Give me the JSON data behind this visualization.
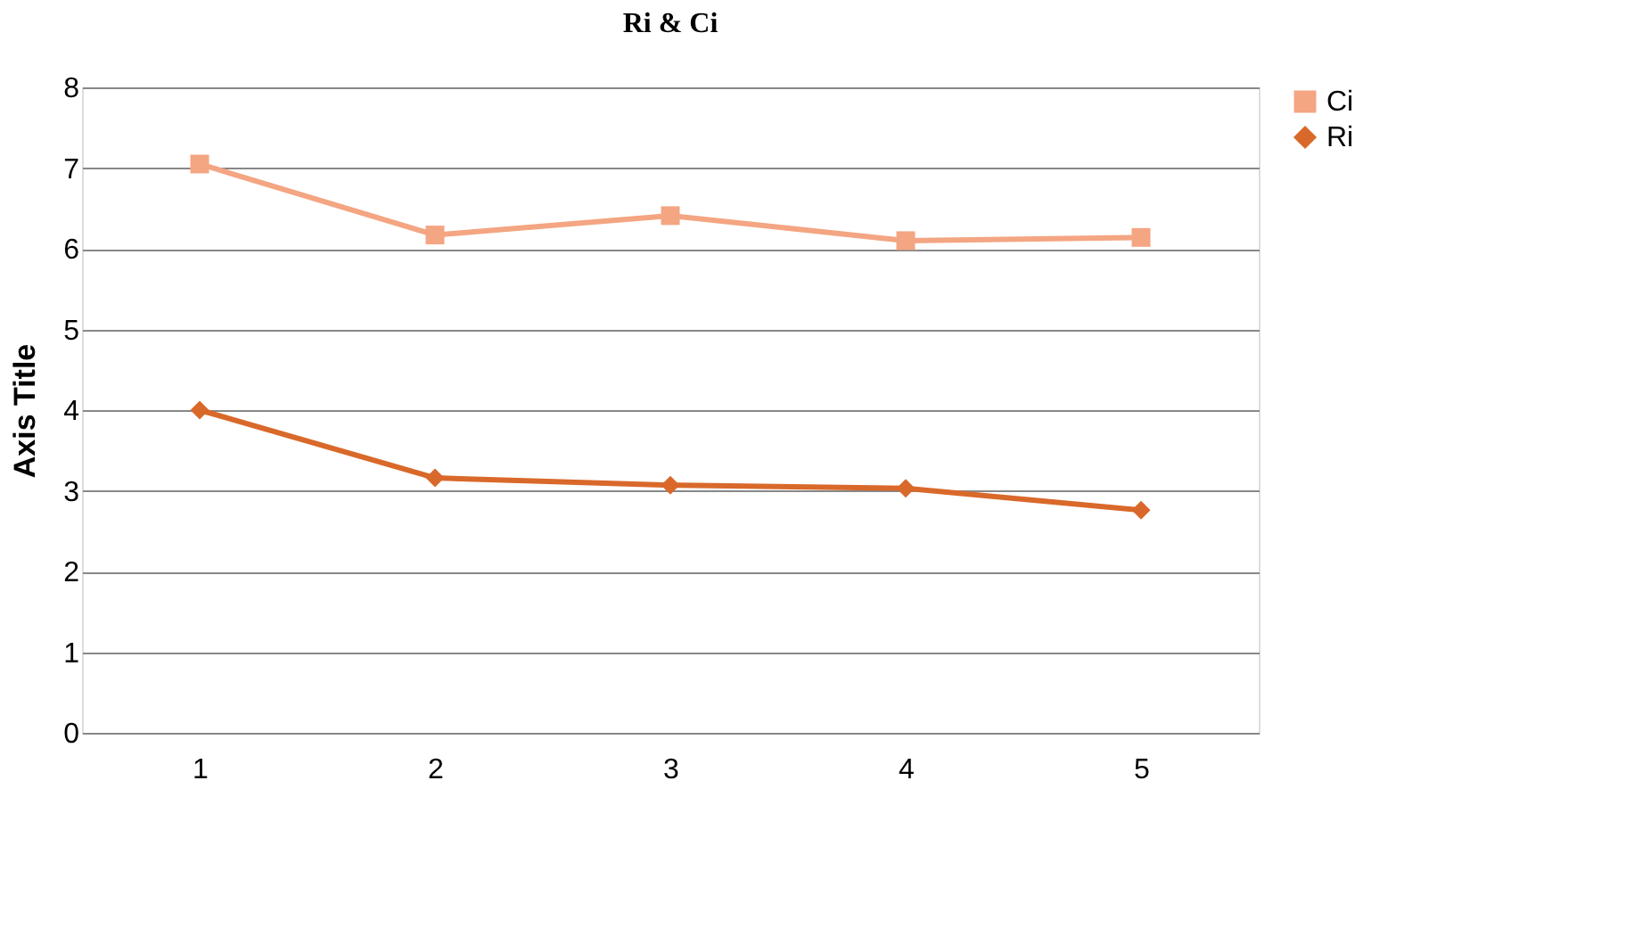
{
  "chart_data": {
    "type": "line",
    "title": "Ri & Ci",
    "ylabel": "Axis Title",
    "categories": [
      "1",
      "2",
      "3",
      "4",
      "5"
    ],
    "series": [
      {
        "name": "Ci",
        "color": "#f4a582",
        "marker": "square",
        "values": [
          7.05,
          6.17,
          6.41,
          6.1,
          6.14
        ]
      },
      {
        "name": "Ri",
        "color": "#d9692a",
        "marker": "diamond",
        "values": [
          4.0,
          3.16,
          3.07,
          3.03,
          2.76
        ]
      }
    ],
    "ylim": [
      0,
      8
    ],
    "yticks": [
      0,
      1,
      2,
      3,
      4,
      5,
      6,
      7,
      8
    ],
    "grid": "y",
    "legend": "right"
  }
}
